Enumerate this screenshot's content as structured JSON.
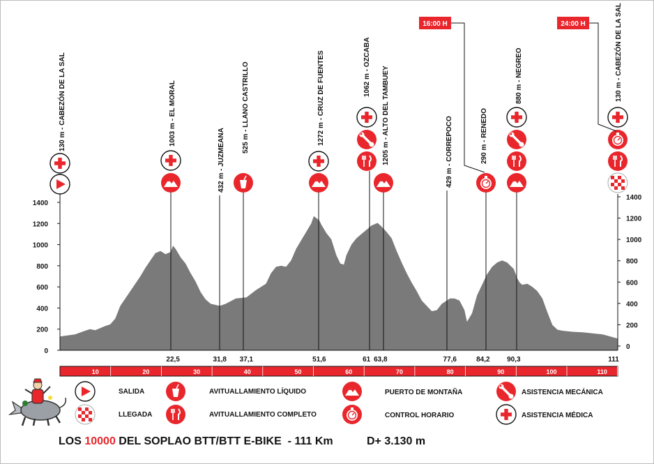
{
  "colors": {
    "red": "#e8262c",
    "gray": "#7a7a7a",
    "line": "#111111"
  },
  "chart_data": {
    "type": "area",
    "title": "",
    "xlabel": "",
    "ylabel": "",
    "xlim": [
      0,
      111
    ],
    "ylim": [
      0,
      1400
    ],
    "left_ticks": [
      0,
      200,
      400,
      600,
      800,
      1000,
      1200,
      1400
    ],
    "right_ticks": [
      0,
      200,
      400,
      600,
      800,
      1000,
      1200,
      1400
    ],
    "bar_ticks": [
      "10",
      "20",
      "30",
      "40",
      "50",
      "60",
      "70",
      "80",
      "90",
      "100",
      "110"
    ],
    "profile": [
      [
        0,
        130
      ],
      [
        3,
        150
      ],
      [
        5,
        185
      ],
      [
        6,
        200
      ],
      [
        7,
        190
      ],
      [
        9,
        230
      ],
      [
        10,
        245
      ],
      [
        11,
        300
      ],
      [
        12,
        420
      ],
      [
        14,
        560
      ],
      [
        16,
        700
      ],
      [
        17,
        780
      ],
      [
        18,
        850
      ],
      [
        19,
        920
      ],
      [
        20,
        940
      ],
      [
        21,
        910
      ],
      [
        22,
        930
      ],
      [
        22.5,
        990
      ],
      [
        23,
        960
      ],
      [
        24,
        880
      ],
      [
        25,
        820
      ],
      [
        26,
        730
      ],
      [
        27,
        650
      ],
      [
        28,
        550
      ],
      [
        29,
        480
      ],
      [
        30,
        440
      ],
      [
        31.8,
        420
      ],
      [
        33,
        440
      ],
      [
        35,
        490
      ],
      [
        37.1,
        500
      ],
      [
        39,
        570
      ],
      [
        41,
        630
      ],
      [
        42,
        730
      ],
      [
        43,
        790
      ],
      [
        44,
        800
      ],
      [
        45,
        790
      ],
      [
        46,
        850
      ],
      [
        47,
        960
      ],
      [
        48,
        1040
      ],
      [
        49,
        1120
      ],
      [
        50,
        1200
      ],
      [
        50.5,
        1270
      ],
      [
        51.6,
        1230
      ],
      [
        52,
        1190
      ],
      [
        53,
        1110
      ],
      [
        54,
        1050
      ],
      [
        55,
        900
      ],
      [
        55.8,
        820
      ],
      [
        56.5,
        810
      ],
      [
        57,
        900
      ],
      [
        58,
        1000
      ],
      [
        59,
        1060
      ],
      [
        60,
        1100
      ],
      [
        61,
        1140
      ],
      [
        62,
        1180
      ],
      [
        63.2,
        1205
      ],
      [
        63.8,
        1180
      ],
      [
        65,
        1120
      ],
      [
        66,
        1060
      ],
      [
        67,
        940
      ],
      [
        68,
        830
      ],
      [
        69,
        730
      ],
      [
        70,
        640
      ],
      [
        71,
        560
      ],
      [
        72,
        470
      ],
      [
        73,
        420
      ],
      [
        74,
        370
      ],
      [
        75,
        380
      ],
      [
        76,
        440
      ],
      [
        77.6,
        490
      ],
      [
        78.5,
        490
      ],
      [
        79.5,
        470
      ],
      [
        80.5,
        380
      ],
      [
        81,
        270
      ],
      [
        82,
        350
      ],
      [
        83,
        520
      ],
      [
        84.2,
        640
      ],
      [
        85,
        720
      ],
      [
        86,
        790
      ],
      [
        87,
        830
      ],
      [
        88,
        850
      ],
      [
        89,
        830
      ],
      [
        90.3,
        770
      ],
      [
        91,
        680
      ],
      [
        91.5,
        640
      ],
      [
        92,
        620
      ],
      [
        93,
        630
      ],
      [
        94,
        600
      ],
      [
        95,
        560
      ],
      [
        96,
        490
      ],
      [
        97,
        360
      ],
      [
        98,
        240
      ],
      [
        99,
        195
      ],
      [
        100,
        185
      ],
      [
        102,
        175
      ],
      [
        104,
        170
      ],
      [
        106,
        160
      ],
      [
        108,
        150
      ],
      [
        111,
        110
      ]
    ],
    "km_markers": [
      {
        "km": "22,5",
        "x": 22.5
      },
      {
        "km": "31,8",
        "x": 31.8
      },
      {
        "km": "37,1",
        "x": 37.1
      },
      {
        "km": "51,6",
        "x": 51.6
      },
      {
        "km": "61",
        "x": 61
      },
      {
        "km": "63,8",
        "x": 63.8
      },
      {
        "km": "77,6",
        "x": 77.6
      },
      {
        "km": "84,2",
        "x": 84.2
      },
      {
        "km": "90,3",
        "x": 90.3
      },
      {
        "km": "111",
        "x": 111
      }
    ]
  },
  "waypoints": [
    {
      "label": "130 m - CABEZÓN DE LA SAL",
      "icons": [
        "cross",
        "play"
      ]
    },
    {
      "label": "1003 m - EL MORAL",
      "icons": [
        "cross",
        "mountain"
      ]
    },
    {
      "label": "432 m - JUZMEANA",
      "icons": []
    },
    {
      "label": "525 m - LLANO CASTRILLO",
      "icons": [
        "cup"
      ]
    },
    {
      "label": "1272 m - CRUZ DE FUENTES",
      "icons": [
        "cross",
        "mountain"
      ]
    },
    {
      "label": "1062 m - OZCABA",
      "icons": [
        "cross",
        "wrench",
        "fork"
      ]
    },
    {
      "label": "1205 m - ALTO DEL TAMBUEY",
      "icons": [
        "mountain"
      ]
    },
    {
      "label": "429 m - CORREPOCO",
      "icons": []
    },
    {
      "label": "290 m - RENEDO",
      "icons": [
        "clock"
      ]
    },
    {
      "label": "880 m - NEGREO",
      "icons": [
        "cross",
        "wrench",
        "fork",
        "mountain"
      ]
    },
    {
      "label": "130 m - CABEZÓN DE LA SAL",
      "icons": [
        "cross",
        "clock",
        "fork",
        "flag"
      ]
    }
  ],
  "time_tags": [
    "16:00 H",
    "24:00 H"
  ],
  "legend": {
    "salida": "SALIDA",
    "llegada": "LLEGADA",
    "liquido": "AVITUALLAMIENTO LÍQUIDO",
    "completo": "AVITUALLAMIENTO COMPLETO",
    "puerto": "PUERTO DE MONTAÑA",
    "control": "CONTROL HORARIO",
    "mecanica": "ASISTENCIA MECÁNICA",
    "medica": "ASISTENCIA MÉDICA"
  },
  "footer": {
    "part1": "LOS ",
    "highlight": "10000",
    "part2": " DEL SOPLAO BTT/BTT E-BIKE  - 111 Km",
    "elevation": "D+ 3.130 m"
  }
}
